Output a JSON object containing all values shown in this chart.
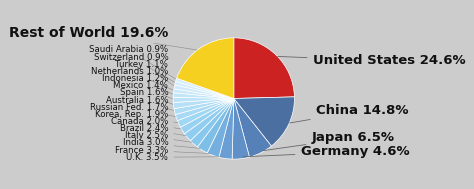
{
  "slices": [
    {
      "label": "United States",
      "pct": 24.6,
      "color": "#CC2222"
    },
    {
      "label": "China",
      "pct": 14.8,
      "color": "#4A6FA0"
    },
    {
      "label": "Japan",
      "pct": 6.5,
      "color": "#5580B8"
    },
    {
      "label": "Germany",
      "pct": 4.6,
      "color": "#6090C8"
    },
    {
      "label": "U.K.",
      "pct": 3.5,
      "color": "#6A9FD5"
    },
    {
      "label": "France",
      "pct": 3.3,
      "color": "#74AFDF"
    },
    {
      "label": "India",
      "pct": 3.0,
      "color": "#7EBFE8"
    },
    {
      "label": "Italy",
      "pct": 2.5,
      "color": "#88C8EE"
    },
    {
      "label": "Brazil",
      "pct": 2.4,
      "color": "#90CDF0"
    },
    {
      "label": "Canada",
      "pct": 2.0,
      "color": "#98D2F2"
    },
    {
      "label": "Korea, Rep.",
      "pct": 1.9,
      "color": "#A0D7F4"
    },
    {
      "label": "Russian Fed.",
      "pct": 1.7,
      "color": "#A8DAF5"
    },
    {
      "label": "Australia",
      "pct": 1.6,
      "color": "#B0DDF6"
    },
    {
      "label": "Spain",
      "pct": 1.6,
      "color": "#B6E0F7"
    },
    {
      "label": "Mexico",
      "pct": 1.4,
      "color": "#BCE3F8"
    },
    {
      "label": "Indonesia",
      "pct": 1.2,
      "color": "#C2E6F9"
    },
    {
      "label": "Netherlands",
      "pct": 1.0,
      "color": "#C8E8FA"
    },
    {
      "label": "Turkey",
      "pct": 1.1,
      "color": "#CEEAFB"
    },
    {
      "label": "Switzerland",
      "pct": 0.9,
      "color": "#D2ECFB"
    },
    {
      "label": "Saudi Arabia",
      "pct": 0.9,
      "color": "#D6EEFC"
    },
    {
      "label": "Rest of World",
      "pct": 19.6,
      "color": "#F5D020"
    }
  ],
  "bg_color": "#CCCCCC",
  "text_color": "#111111",
  "small_fs": 6.2,
  "big_fs": 9.5,
  "right_labels": [
    "United States",
    "China",
    "Japan",
    "Germany"
  ],
  "left_labels": [
    "Rest of World",
    "Saudi Arabia",
    "Switzerland",
    "Turkey",
    "Netherlands",
    "Indonesia",
    "Mexico",
    "Spain",
    "Australia",
    "Russian Fed.",
    "Korea, Rep.",
    "Canada",
    "Brazil",
    "Italy",
    "India",
    "France",
    "U.K."
  ]
}
